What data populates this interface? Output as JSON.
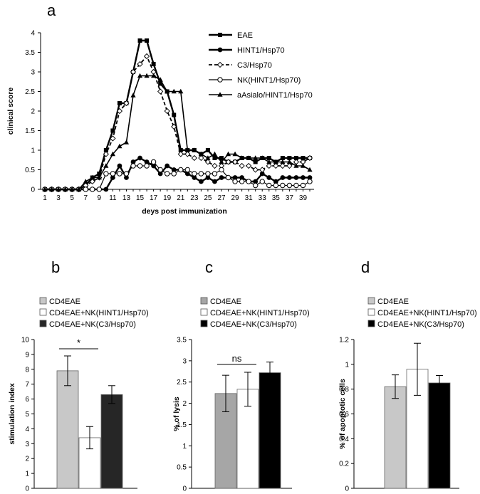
{
  "panels": {
    "a": "a",
    "b": "b",
    "c": "c",
    "d": "d"
  },
  "chart_data": [
    {
      "id": "a",
      "type": "line",
      "xlabel": "deys post immunization",
      "ylabel": "clinical score",
      "ylim": [
        0,
        4
      ],
      "yticks": [
        "0",
        "0.5",
        "1",
        "1.5",
        "2",
        "2.5",
        "3",
        "3.5",
        "4"
      ],
      "xticks": [
        "1",
        "3",
        "5",
        "7",
        "9",
        "11",
        "13",
        "15",
        "17",
        "19",
        "21",
        "23",
        "25",
        "27",
        "29",
        "31",
        "33",
        "35",
        "37",
        "39"
      ],
      "x": [
        1,
        2,
        3,
        4,
        5,
        6,
        7,
        8,
        9,
        10,
        11,
        12,
        13,
        14,
        15,
        16,
        17,
        18,
        19,
        20,
        21,
        22,
        23,
        24,
        25,
        26,
        27,
        28,
        29,
        30,
        31,
        32,
        33,
        34,
        35,
        36,
        37,
        38,
        39,
        40
      ],
      "legend_position": "top-right",
      "series": [
        {
          "name": "EAE",
          "marker": "square",
          "dash": "solid",
          "width": 2.4,
          "values": [
            0,
            0,
            0,
            0,
            0,
            0,
            0.1,
            0.3,
            0.4,
            1.0,
            1.5,
            2.2,
            2.2,
            3.0,
            3.8,
            3.8,
            3.2,
            2.7,
            2.5,
            1.9,
            1.0,
            1.0,
            1.0,
            0.9,
            1.0,
            0.8,
            0.8,
            0.7,
            0.7,
            0.8,
            0.8,
            0.7,
            0.8,
            0.8,
            0.7,
            0.8,
            0.8,
            0.8,
            0.8,
            0.8
          ]
        },
        {
          "name": "HINT1/Hsp70",
          "marker": "filled-circle",
          "dash": "solid",
          "width": 2.4,
          "values": [
            0,
            0,
            0,
            0,
            0,
            0,
            0,
            0,
            0,
            0,
            0.3,
            0.6,
            0.3,
            0.7,
            0.8,
            0.7,
            0.6,
            0.4,
            0.6,
            0.5,
            0.5,
            0.4,
            0.3,
            0.2,
            0.3,
            0.2,
            0.3,
            0.3,
            0.3,
            0.3,
            0.2,
            0.2,
            0.4,
            0.3,
            0.2,
            0.3,
            0.3,
            0.3,
            0.3,
            0.3
          ]
        },
        {
          "name": "C3/Hsp70",
          "marker": "open-diamond",
          "dash": "dashed",
          "width": 1.8,
          "values": [
            0,
            0,
            0,
            0,
            0,
            0,
            0.1,
            0.2,
            0.3,
            0.9,
            1.3,
            2.0,
            2.2,
            3.0,
            3.2,
            3.4,
            3.0,
            2.5,
            2.0,
            1.6,
            0.9,
            0.9,
            0.8,
            0.8,
            0.7,
            0.6,
            0.6,
            0.7,
            0.7,
            0.6,
            0.6,
            0.5,
            0.5,
            0.6,
            0.6,
            0.6,
            0.6,
            0.7,
            0.7,
            0.8
          ]
        },
        {
          "name": "NK(HINT1/Hsp70)",
          "marker": "open-circle",
          "dash": "solid",
          "width": 1.2,
          "values": [
            0,
            0,
            0,
            0,
            0,
            0,
            0,
            0,
            0,
            0.4,
            0.4,
            0.4,
            0.4,
            0.6,
            0.6,
            0.6,
            0.7,
            0.5,
            0.4,
            0.4,
            0.5,
            0.5,
            0.4,
            0.4,
            0.4,
            0.4,
            0.5,
            0.3,
            0.2,
            0.2,
            0.2,
            0.1,
            0.2,
            0.1,
            0.1,
            0.1,
            0.1,
            0.1,
            0.1,
            0.2
          ]
        },
        {
          "name": "aAsialo/HINT1/Hsp70",
          "marker": "filled-triangle",
          "dash": "solid",
          "width": 1.6,
          "values": [
            0,
            0,
            0,
            0,
            0,
            0,
            0.2,
            0.3,
            0.3,
            0.6,
            0.9,
            1.1,
            1.2,
            2.4,
            2.9,
            2.9,
            2.9,
            2.8,
            2.5,
            2.5,
            2.5,
            1.0,
            1.0,
            0.9,
            0.8,
            0.9,
            0.7,
            0.9,
            0.9,
            0.8,
            0.8,
            0.8,
            0.8,
            0.7,
            0.7,
            0.7,
            0.7,
            0.6,
            0.6,
            0.5
          ]
        }
      ]
    },
    {
      "id": "b",
      "type": "bar",
      "ylabel": "stimulation index",
      "ylim": [
        0,
        10
      ],
      "yticks": [
        "0",
        "1",
        "2",
        "3",
        "4",
        "5",
        "6",
        "7",
        "8",
        "9",
        "10"
      ],
      "categories": [
        "CD4EAE",
        "CD4EAE+NK(HINT1/Hsp70)",
        "CD4EAE+NK(C3/Hsp70)"
      ],
      "values": [
        7.9,
        3.4,
        6.3
      ],
      "errors": [
        1.0,
        0.75,
        0.6
      ],
      "colors": [
        "#c8c8c8",
        "#ffffff",
        "#262626"
      ],
      "significance": "*"
    },
    {
      "id": "c",
      "type": "bar",
      "ylabel": "% of lysis",
      "ylim": [
        0,
        3.5
      ],
      "yticks": [
        "0",
        "0.5",
        "1",
        "1.5",
        "2",
        "2.5",
        "3",
        "3.5"
      ],
      "categories": [
        "CD4EAE",
        "CD4EAE+NK(HINT1/Hsp70)",
        "CD4EAE+NK(C3/Hsp70)"
      ],
      "values": [
        2.23,
        2.33,
        2.72
      ],
      "errors": [
        0.43,
        0.4,
        0.25
      ],
      "colors": [
        "#a6a6a6",
        "#ffffff",
        "#000000"
      ],
      "significance": "ns"
    },
    {
      "id": "d",
      "type": "bar",
      "ylabel": "% of apoptotic cells",
      "ylim": [
        0,
        1.2
      ],
      "yticks": [
        "0",
        "0.2",
        "0.4",
        "0.6",
        "0.8",
        "1",
        "1.2"
      ],
      "categories": [
        "CD4EAE",
        "CD4EAE+NK(HINT1/Hsp70)",
        "CD4EAE+NK(C3/Hsp70)"
      ],
      "values": [
        0.82,
        0.96,
        0.85
      ],
      "errors": [
        0.095,
        0.21,
        0.06
      ],
      "colors": [
        "#c8c8c8",
        "#ffffff",
        "#000000"
      ],
      "significance": ""
    }
  ]
}
